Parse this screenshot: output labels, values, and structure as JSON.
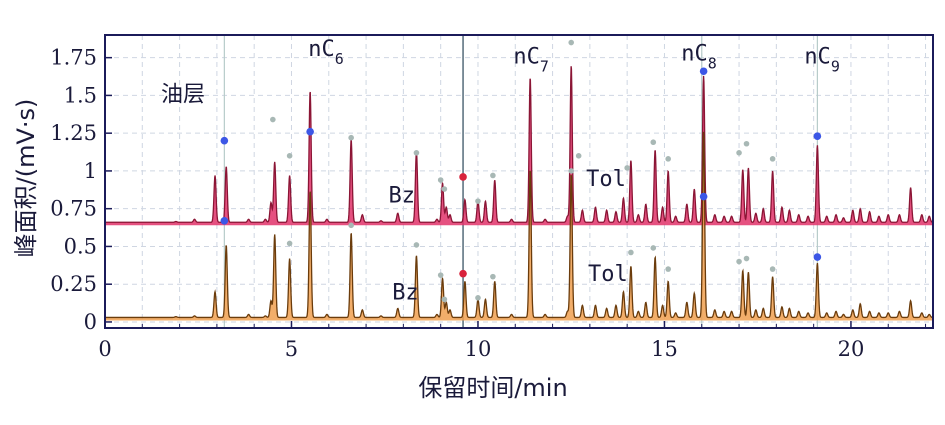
{
  "chart_data": {
    "type": "line",
    "xlabel": "保留时间/min",
    "ylabel": "峰面积/(mV·s)",
    "xlim": [
      0,
      22.2
    ],
    "ylim": [
      -0.04,
      1.9
    ],
    "grid": true,
    "x_ticks": [
      0,
      5,
      10,
      15,
      20
    ],
    "x_tick_labels": [
      "0",
      "5",
      "10",
      "15",
      "20"
    ],
    "y_ticks": [
      0,
      0.25,
      0.5,
      0.75,
      1,
      1.25,
      1.5,
      1.75
    ],
    "y_tick_labels": [
      "0",
      "0.25",
      "0.5",
      "0.75",
      "1",
      "1.25",
      "1.5",
      "1.75"
    ],
    "vertical_lines": [
      3.2,
      9.6,
      16.0,
      19.1
    ],
    "colors": {
      "upper_line": "#8b1535",
      "upper_fill": "#e0336a",
      "lower_line": "#6b3c0c",
      "lower_fill": "#f0a050",
      "frame": "#1b1b5a",
      "grid": "#cfd6e2"
    },
    "series": [
      {
        "baseline": 0.66,
        "peaks": [
          [
            1.9,
            0.005
          ],
          [
            2.4,
            0.02
          ],
          [
            2.95,
            0.31
          ],
          [
            3.25,
            0.37
          ],
          [
            3.85,
            0.02
          ],
          [
            4.3,
            0.02
          ],
          [
            4.45,
            0.13
          ],
          [
            4.55,
            0.4
          ],
          [
            4.95,
            0.31
          ],
          [
            5.5,
            0.87
          ],
          [
            5.95,
            0.02
          ],
          [
            6.6,
            0.55
          ],
          [
            6.9,
            0.05
          ],
          [
            7.4,
            0.01
          ],
          [
            7.85,
            0.06
          ],
          [
            8.35,
            0.47
          ],
          [
            8.9,
            0.02
          ],
          [
            9.05,
            0.26
          ],
          [
            9.15,
            0.1
          ],
          [
            9.25,
            0.05
          ],
          [
            9.65,
            0.15
          ],
          [
            10.0,
            0.14
          ],
          [
            10.2,
            0.14
          ],
          [
            10.45,
            0.28
          ],
          [
            10.9,
            0.02
          ],
          [
            11.4,
            0.96
          ],
          [
            11.8,
            0.02
          ],
          [
            12.4,
            0.04
          ],
          [
            12.5,
            1.04
          ],
          [
            12.8,
            0.08
          ],
          [
            13.15,
            0.1
          ],
          [
            13.45,
            0.08
          ],
          [
            13.7,
            0.07
          ],
          [
            13.9,
            0.16
          ],
          [
            14.1,
            0.41
          ],
          [
            14.3,
            0.05
          ],
          [
            14.5,
            0.12
          ],
          [
            14.75,
            0.48
          ],
          [
            14.95,
            0.1
          ],
          [
            15.1,
            0.34
          ],
          [
            15.3,
            0.04
          ],
          [
            15.6,
            0.12
          ],
          [
            15.8,
            0.22
          ],
          [
            16.05,
            0.97
          ],
          [
            16.35,
            0.05
          ],
          [
            16.6,
            0.04
          ],
          [
            16.8,
            0.04
          ],
          [
            17.1,
            0.35
          ],
          [
            17.25,
            0.36
          ],
          [
            17.45,
            0.06
          ],
          [
            17.65,
            0.09
          ],
          [
            17.9,
            0.34
          ],
          [
            18.15,
            0.1
          ],
          [
            18.35,
            0.08
          ],
          [
            18.6,
            0.05
          ],
          [
            18.85,
            0.04
          ],
          [
            19.1,
            0.51
          ],
          [
            19.35,
            0.04
          ],
          [
            19.6,
            0.05
          ],
          [
            19.8,
            0.03
          ],
          [
            20.05,
            0.08
          ],
          [
            20.25,
            0.09
          ],
          [
            20.5,
            0.07
          ],
          [
            20.75,
            0.04
          ],
          [
            21.0,
            0.05
          ],
          [
            21.3,
            0.05
          ],
          [
            21.6,
            0.23
          ],
          [
            21.9,
            0.05
          ],
          [
            22.1,
            0.04
          ]
        ],
        "markers_red": [
          [
            9.6,
            0.96
          ]
        ],
        "markers_blue": [
          [
            3.2,
            1.2
          ],
          [
            3.2,
            0.67
          ],
          [
            5.5,
            1.26
          ],
          [
            16.05,
            1.66
          ],
          [
            16.05,
            0.83
          ],
          [
            19.1,
            1.23
          ]
        ],
        "markers_grey": [
          [
            4.5,
            1.34
          ],
          [
            4.95,
            1.1
          ],
          [
            6.6,
            1.22
          ],
          [
            8.35,
            1.12
          ],
          [
            9.0,
            0.94
          ],
          [
            9.1,
            0.88
          ],
          [
            10.0,
            0.8
          ],
          [
            10.4,
            0.97
          ],
          [
            12.5,
            1.85
          ],
          [
            12.7,
            1.1
          ],
          [
            14.0,
            1.02
          ],
          [
            14.7,
            1.19
          ],
          [
            15.1,
            1.08
          ],
          [
            17.0,
            1.12
          ],
          [
            17.2,
            1.18
          ],
          [
            17.9,
            1.08
          ]
        ]
      },
      {
        "baseline": 0.03,
        "peaks": [
          [
            1.9,
            0.005
          ],
          [
            2.4,
            0.01
          ],
          [
            2.95,
            0.17
          ],
          [
            3.25,
            0.48
          ],
          [
            3.85,
            0.02
          ],
          [
            4.3,
            0.01
          ],
          [
            4.45,
            0.11
          ],
          [
            4.55,
            0.55
          ],
          [
            4.95,
            0.39
          ],
          [
            5.5,
            0.84
          ],
          [
            5.95,
            0.02
          ],
          [
            6.6,
            0.56
          ],
          [
            6.9,
            0.05
          ],
          [
            7.4,
            0.01
          ],
          [
            7.85,
            0.06
          ],
          [
            8.35,
            0.41
          ],
          [
            8.9,
            0.02
          ],
          [
            9.05,
            0.26
          ],
          [
            9.15,
            0.1
          ],
          [
            9.25,
            0.05
          ],
          [
            9.65,
            0.24
          ],
          [
            10.0,
            0.12
          ],
          [
            10.2,
            0.12
          ],
          [
            10.45,
            0.24
          ],
          [
            10.9,
            0.02
          ],
          [
            11.4,
            0.98
          ],
          [
            11.8,
            0.02
          ],
          [
            12.4,
            0.04
          ],
          [
            12.5,
            0.95
          ],
          [
            12.8,
            0.08
          ],
          [
            13.15,
            0.08
          ],
          [
            13.45,
            0.06
          ],
          [
            13.7,
            0.08
          ],
          [
            13.9,
            0.17
          ],
          [
            14.1,
            0.34
          ],
          [
            14.3,
            0.04
          ],
          [
            14.5,
            0.1
          ],
          [
            14.75,
            0.4
          ],
          [
            14.95,
            0.08
          ],
          [
            15.1,
            0.24
          ],
          [
            15.3,
            0.03
          ],
          [
            15.6,
            0.1
          ],
          [
            15.8,
            0.16
          ],
          [
            16.05,
            1.23
          ],
          [
            16.35,
            0.05
          ],
          [
            16.6,
            0.04
          ],
          [
            16.8,
            0.04
          ],
          [
            17.1,
            0.31
          ],
          [
            17.25,
            0.3
          ],
          [
            17.45,
            0.05
          ],
          [
            17.65,
            0.06
          ],
          [
            17.9,
            0.27
          ],
          [
            18.15,
            0.07
          ],
          [
            18.35,
            0.06
          ],
          [
            18.6,
            0.04
          ],
          [
            18.85,
            0.03
          ],
          [
            19.1,
            0.36
          ],
          [
            19.35,
            0.03
          ],
          [
            19.6,
            0.04
          ],
          [
            19.8,
            0.02
          ],
          [
            20.05,
            0.05
          ],
          [
            20.25,
            0.09
          ],
          [
            20.5,
            0.04
          ],
          [
            20.75,
            0.03
          ],
          [
            21.0,
            0.03
          ],
          [
            21.3,
            0.04
          ],
          [
            21.6,
            0.11
          ],
          [
            21.9,
            0.03
          ],
          [
            22.1,
            0.02
          ]
        ],
        "markers_red": [
          [
            9.6,
            0.32
          ]
        ],
        "markers_blue": [
          [
            19.1,
            0.43
          ]
        ],
        "markers_grey": [
          [
            4.95,
            0.52
          ],
          [
            6.6,
            0.64
          ],
          [
            8.35,
            0.51
          ],
          [
            9.0,
            0.31
          ],
          [
            9.1,
            0.15
          ],
          [
            10.0,
            0.16
          ],
          [
            10.4,
            0.3
          ],
          [
            12.5,
            1.0
          ],
          [
            14.1,
            0.46
          ],
          [
            14.7,
            0.49
          ],
          [
            15.1,
            0.35
          ],
          [
            17.0,
            0.4
          ],
          [
            17.2,
            0.42
          ],
          [
            17.9,
            0.35
          ]
        ]
      }
    ],
    "annotations": [
      {
        "text": "油层",
        "x": 1.5,
        "y": 1.46,
        "style": "cn"
      },
      {
        "text": "nC",
        "sub": "6",
        "x": 5.45,
        "y": 1.76
      },
      {
        "text": "nC",
        "sub": "7",
        "x": 10.95,
        "y": 1.71
      },
      {
        "text": "nC",
        "sub": "8",
        "x": 15.45,
        "y": 1.73
      },
      {
        "text": "nC",
        "sub": "9",
        "x": 18.75,
        "y": 1.71
      },
      {
        "text": "Bz",
        "x": 7.6,
        "y": 0.79
      },
      {
        "text": "Tol",
        "x": 12.9,
        "y": 0.9
      },
      {
        "text": "Bz",
        "x": 7.7,
        "y": 0.15
      },
      {
        "text": "Tol",
        "x": 12.95,
        "y": 0.27
      }
    ]
  }
}
